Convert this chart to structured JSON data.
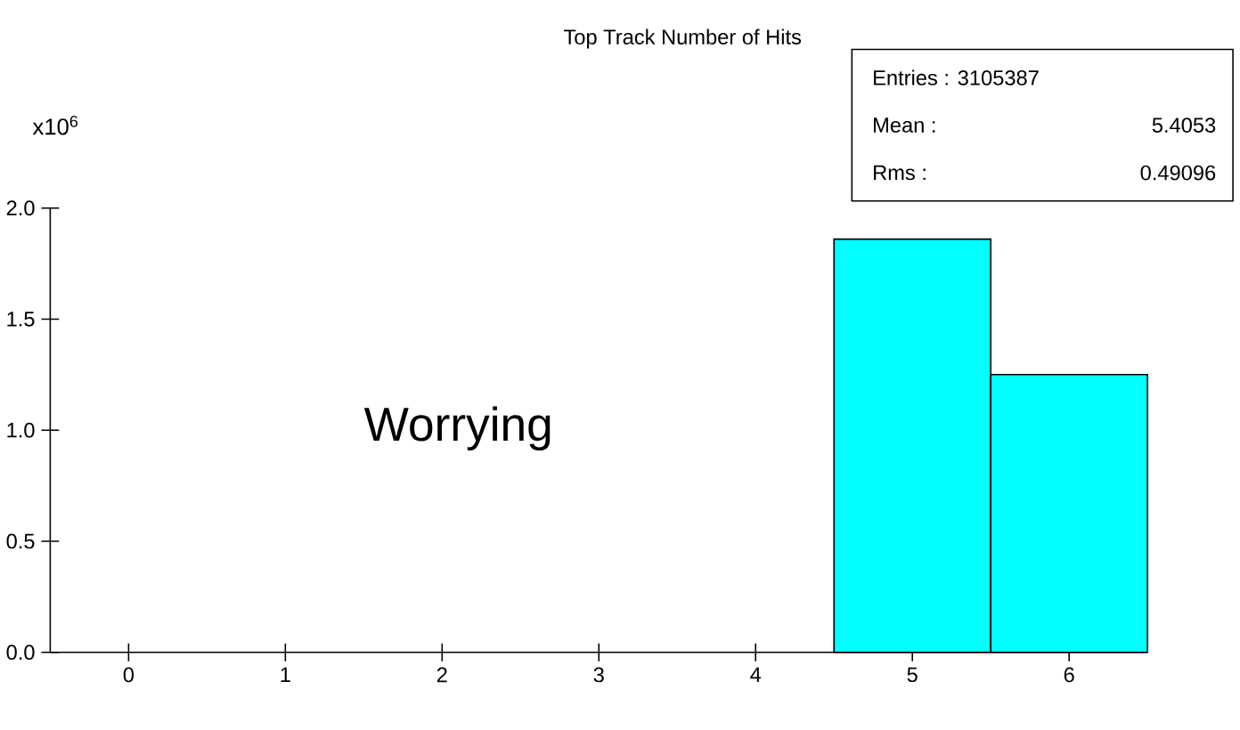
{
  "chart_data": {
    "type": "histogram",
    "title": "Top Track Number of Hits",
    "ylabel": "x10$^{6}$",
    "bins": [
      4.5,
      5.5,
      6.5
    ],
    "values": [
      1.86,
      1.25
    ],
    "color": "#00ffff",
    "xlim": [
      -0.5,
      6.5
    ],
    "xticks": [
      0,
      1,
      2,
      3,
      4,
      5,
      6
    ],
    "ylim": [
      0,
      2.0
    ],
    "yticks": [
      {
        "value": 0,
        "label": "0.0"
      },
      {
        "value": 0.5,
        "label": "0.5"
      },
      {
        "value": 1.0,
        "label": "1.0"
      },
      {
        "value": 1.5,
        "label": "1.5"
      },
      {
        "value": 2.0,
        "label": "2.0"
      }
    ],
    "grid": false,
    "annotations": [
      "Entries : 3105387",
      "Mean :",
      "5.4053",
      "Rms :",
      "0.49096",
      "Worrying"
    ]
  }
}
